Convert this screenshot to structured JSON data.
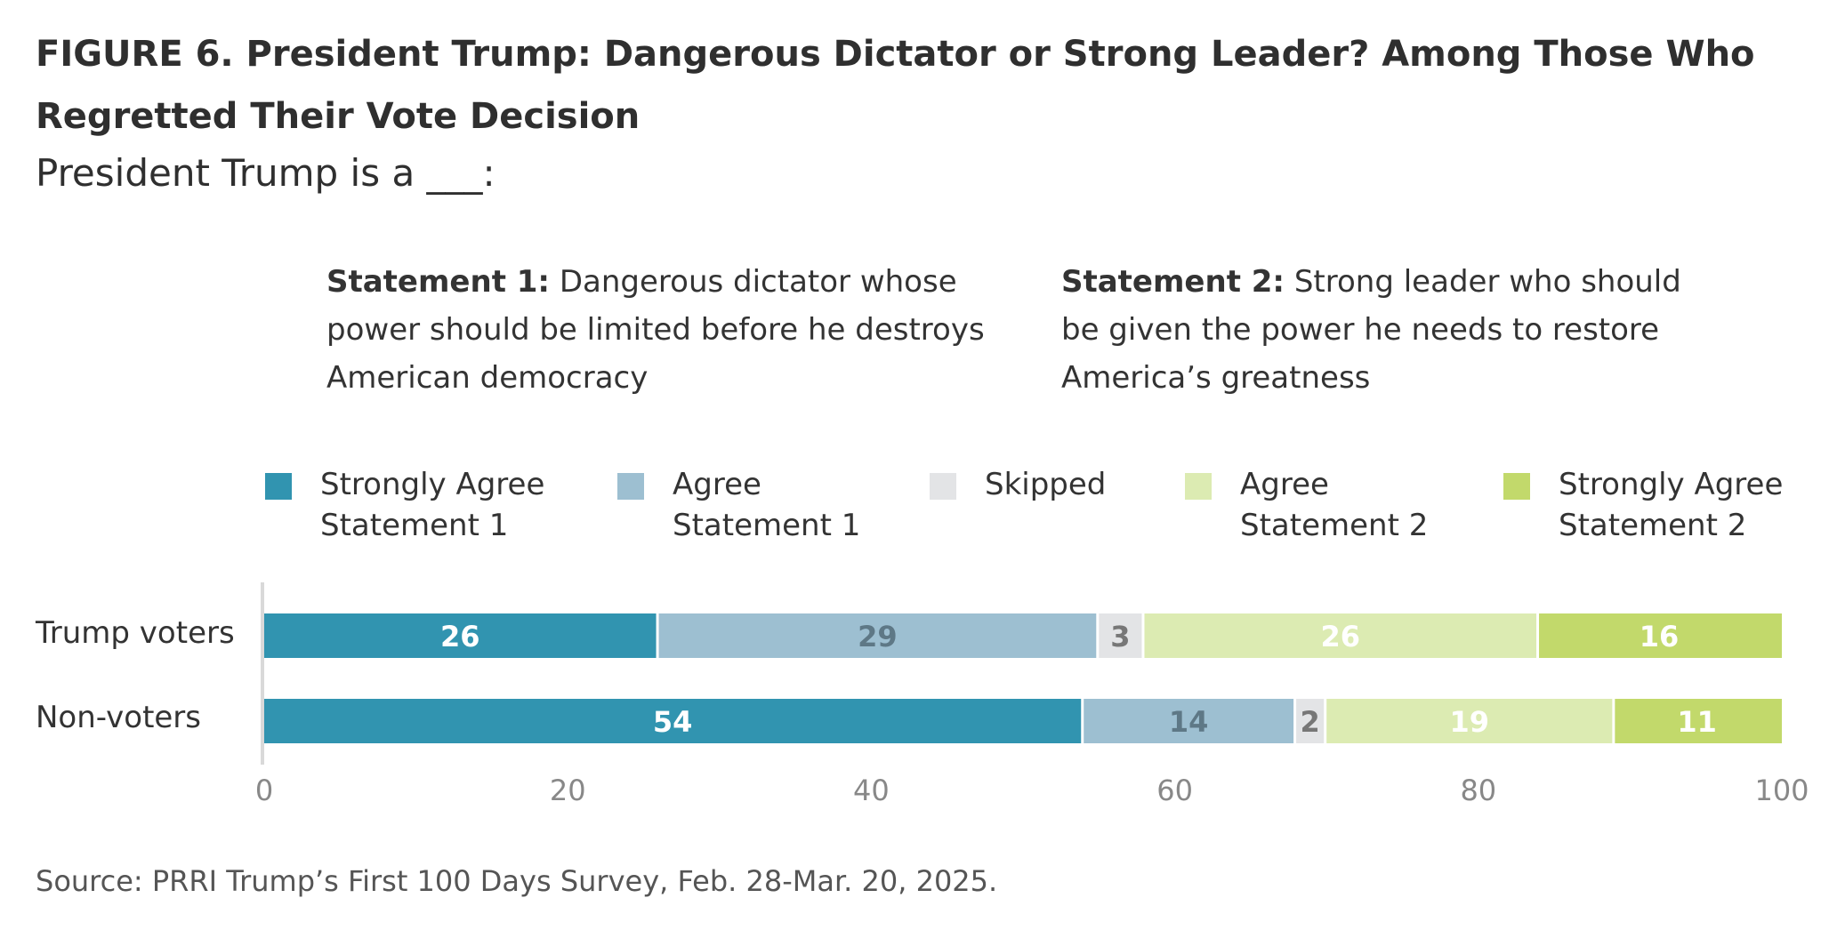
{
  "header": {
    "title": "FIGURE 6.  President Trump: Dangerous Dictator or Strong Leader? Among Those Who Regretted Their Vote Decision",
    "subtitle": "President Trump is a ___:"
  },
  "statements": [
    {
      "label": "Statement 1:",
      "text": " Dangerous dictator whose power should be limited before he destroys American democracy"
    },
    {
      "label": "Statement 2:",
      "text": " Strong leader who should be given the power he needs to restore America’s greatness"
    }
  ],
  "footer": {
    "source": "Source: PRRI Trump’s First 100 Days Survey, Feb. 28-Mar. 20, 2025."
  },
  "chart_data": {
    "type": "bar",
    "orientation": "horizontal",
    "stacked": true,
    "categories": [
      "Trump voters",
      "Non-voters"
    ],
    "series": [
      {
        "name": "Strongly Agree Statement 1",
        "legend_lines": [
          "Strongly Agree",
          "Statement 1"
        ],
        "values": [
          26,
          54
        ],
        "color": "#3194b0",
        "label_color": "#ffffff"
      },
      {
        "name": "Agree Statement 1",
        "legend_lines": [
          "Agree",
          "Statement 1"
        ],
        "values": [
          29,
          14
        ],
        "color": "#9dbfd1",
        "label_color": "#5e7886"
      },
      {
        "name": "Skipped",
        "legend_lines": [
          "Skipped",
          ""
        ],
        "values": [
          3,
          2
        ],
        "color": "#e3e4e6",
        "label_color": "#777777"
      },
      {
        "name": "Agree Statement 2",
        "legend_lines": [
          "Agree",
          "Statement 2"
        ],
        "values": [
          26,
          19
        ],
        "color": "#dcebb2",
        "label_color": "#ffffff"
      },
      {
        "name": "Strongly Agree Statement 2",
        "legend_lines": [
          "Strongly Agree",
          "Statement 2"
        ],
        "values": [
          16,
          11
        ],
        "color": "#c2d96b",
        "label_color": "#ffffff"
      }
    ],
    "xlim": [
      0,
      100
    ],
    "xticks": [
      0,
      20,
      40,
      60,
      80,
      100
    ],
    "grid": false,
    "legend_position": "top"
  }
}
